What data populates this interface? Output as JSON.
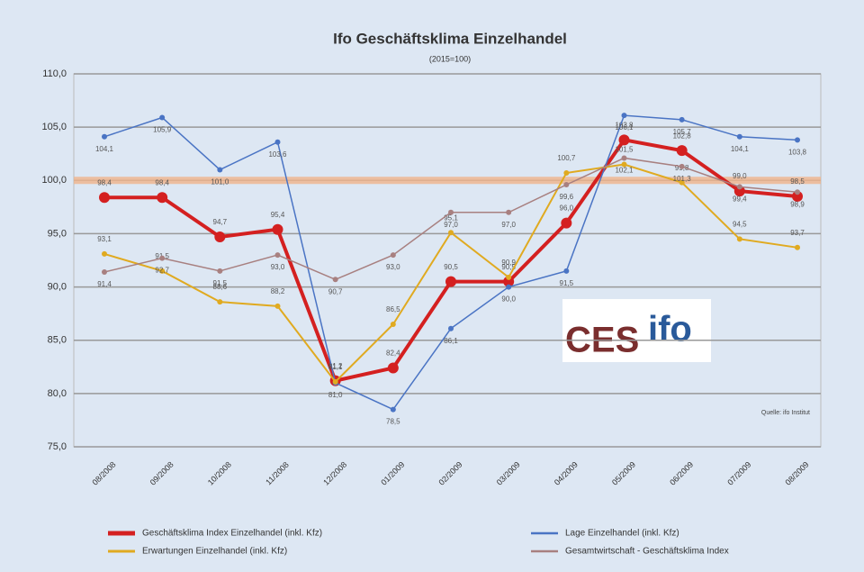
{
  "chart_data": {
    "type": "line",
    "title": "Ifo Geschäftsklima Einzelhandel",
    "subtitle": "(2015=100)",
    "source": "Quelle: ifo Institut",
    "logo": [
      "CES",
      "ifo"
    ],
    "categories": [
      "08/2008",
      "09/2008",
      "10/2008",
      "11/2008",
      "12/2008",
      "01/2009",
      "02/2009",
      "03/2009",
      "04/2009",
      "05/2009",
      "06/2009",
      "07/2009",
      "08/2009"
    ],
    "ylim": [
      75,
      110
    ],
    "yticks": [
      {
        "value": 75,
        "label": "75,0"
      },
      {
        "value": 80,
        "label": "80,0"
      },
      {
        "value": 85,
        "label": "85,0"
      },
      {
        "value": 90,
        "label": "90,0"
      },
      {
        "value": 95,
        "label": "95,0"
      },
      {
        "value": 100,
        "label": "100,0"
      },
      {
        "value": 105,
        "label": "105,0"
      },
      {
        "value": 110,
        "label": "110,0"
      }
    ],
    "grid": true,
    "reference_line": {
      "value": 100,
      "color": "#f0b48c"
    },
    "series": [
      {
        "name": "Geschäftsklima Index Einzelhandel (inkl. Kfz)",
        "color": "#d42020",
        "width": 4,
        "values": [
          98.4,
          98.4,
          94.7,
          95.4,
          81.2,
          82.4,
          90.5,
          90.5,
          96.0,
          103.8,
          102.8,
          99.0,
          98.5
        ],
        "value_labels": [
          "98,4",
          "98,4",
          "94,7",
          "95,4",
          "81,2",
          "82,4",
          "90,5",
          "90,5",
          "96,0",
          "103,8",
          "102,8",
          "99,0",
          "98,5"
        ]
      },
      {
        "name": "Lage Einzelhandel (inkl. Kfz)",
        "color": "#4a74c4",
        "width": 1.5,
        "values": [
          104.1,
          105.9,
          101.0,
          103.6,
          81.0,
          78.5,
          86.1,
          90.0,
          91.5,
          106.1,
          105.7,
          104.1,
          103.8
        ],
        "value_labels": [
          "104,1",
          "105,9",
          "101,0",
          "103,6",
          "81,0",
          "78,5",
          "86,1",
          "90,0",
          "91,5",
          "106,1",
          "105,7",
          "104,1",
          "103,8"
        ]
      },
      {
        "name": "Erwartungen Einzelhandel (inkl. Kfz)",
        "color": "#e0aa20",
        "width": 2,
        "values": [
          93.1,
          91.5,
          88.6,
          88.2,
          81.1,
          86.5,
          95.1,
          90.9,
          100.7,
          101.5,
          99.8,
          94.5,
          93.7
        ],
        "value_labels": [
          "93,1",
          "91,5",
          "88,6",
          "88,2",
          "81,1",
          "86,5",
          "95,1",
          "90,9",
          "100,7",
          "101,5",
          "99,8",
          "94,5",
          "93,7"
        ]
      },
      {
        "name": "Gesamtwirtschaft - Geschäftsklima Index",
        "color": "#a88080",
        "width": 1.5,
        "values": [
          91.4,
          92.7,
          91.5,
          93.0,
          90.7,
          93.0,
          97.0,
          97.0,
          99.6,
          102.1,
          101.3,
          99.4,
          98.9
        ],
        "value_labels": [
          "91,4",
          "92,7",
          "91,5",
          "93,0",
          "90,7",
          "93,0",
          "97,0",
          "97,0",
          "99,6",
          "102,1",
          "101,3",
          "99,4",
          "98,9"
        ]
      }
    ]
  }
}
